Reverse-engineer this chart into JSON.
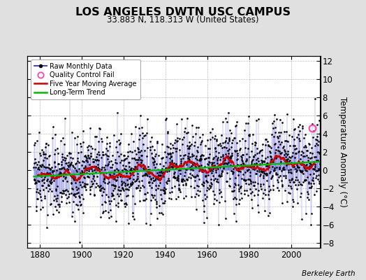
{
  "title": "LOS ANGELES DWTN USC CAMPUS",
  "subtitle": "33.883 N, 118.313 W (United States)",
  "ylabel": "Temperature Anomaly (°C)",
  "credit": "Berkeley Earth",
  "x_start": 1877,
  "x_end": 2013,
  "ylim": [
    -8.5,
    12.5
  ],
  "yticks": [
    -8,
    -6,
    -4,
    -2,
    0,
    2,
    4,
    6,
    8,
    10,
    12
  ],
  "xlim": [
    1874,
    2014
  ],
  "xticks": [
    1880,
    1900,
    1920,
    1940,
    1960,
    1980,
    2000
  ],
  "qc_fail_x": 2010.25,
  "qc_fail_y": 4.6,
  "bg_color": "#e0e0e0",
  "plot_bg": "#ffffff",
  "raw_line_color": "#3333cc",
  "raw_dot_color": "#000000",
  "moving_avg_color": "#cc0000",
  "trend_color": "#00bb00",
  "qc_color": "#ff44aa",
  "grid_color": "#b0b0b0",
  "seed": 42,
  "noise_amplitude": 2.2,
  "warming_trend": 0.011
}
